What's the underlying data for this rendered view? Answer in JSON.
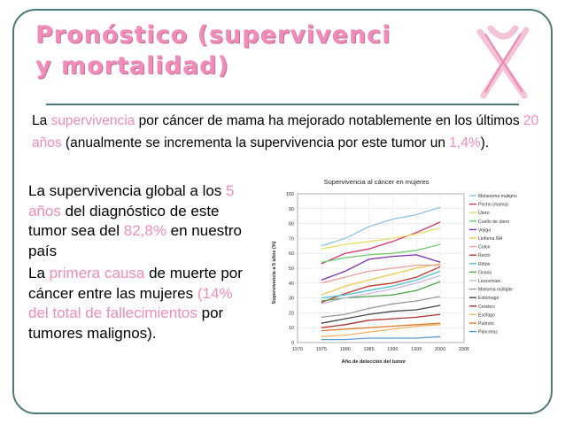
{
  "slide": {
    "title_line1": "Pronóstico (supervivenci",
    "title_line2": "y mortalidad)",
    "intro": {
      "t1": "La ",
      "h1": "supervivencia",
      "t2": " por cáncer de mama ha mejorado notablemente en los últimos ",
      "h2": "20 años",
      "t3": " (anualmente se incrementa la supervivencia por este tumor un ",
      "h3": "1,4%",
      "t4": ")."
    },
    "bullet1": {
      "t1": "La supervivencia global a los ",
      "h1": "5 años",
      "t2": " del diagnóstico de este tumor sea del ",
      "h2": "82,8%",
      "t3": " en nuestro país"
    },
    "bullet2": {
      "t1": "La ",
      "h1": "primera causa",
      "t2": " de muerte por cáncer entre las mujeres ",
      "h2": "(14% del total de fallecimientos",
      "t3": " por tumores malignos)."
    },
    "colors": {
      "title": "#f08cb9",
      "highlight": "#f08cb9",
      "frame": "#4d7a78"
    },
    "icon": "pink-ribbon-icon"
  },
  "chart_data": {
    "type": "line",
    "title": "Supervivencia al cáncer en mujeres",
    "xlabel": "Año de detección del tumor",
    "ylabel": "Supervivencia a 5 años (%)",
    "xlim": [
      1970,
      2005
    ],
    "ylim": [
      0,
      100
    ],
    "xticks": [
      1970,
      1975,
      1980,
      1985,
      1990,
      1995,
      2000,
      2005
    ],
    "yticks": [
      0,
      10,
      20,
      30,
      40,
      50,
      60,
      70,
      80,
      90,
      100
    ],
    "legend_position": "right",
    "x": [
      1975,
      1980,
      1985,
      1990,
      1995,
      2000
    ],
    "series": [
      {
        "name": "Melanoma maligno",
        "color": "#8fc3e6",
        "values": [
          65,
          70,
          78,
          83,
          86,
          91
        ]
      },
      {
        "name": "Pecho (mama)",
        "color": "#d6336c",
        "values": [
          53,
          60,
          63,
          68,
          74,
          81
        ]
      },
      {
        "name": "Útero",
        "color": "#e8de6a",
        "values": [
          63,
          66,
          68,
          70,
          73,
          77
        ]
      },
      {
        "name": "Cuello de útero",
        "color": "#6fcf6f",
        "values": [
          54,
          57,
          59,
          60,
          62,
          66
        ]
      },
      {
        "name": "Vejiga",
        "color": "#7b2fb0",
        "values": [
          42,
          48,
          56,
          58,
          59,
          54
        ]
      },
      {
        "name": "Linfoma NH",
        "color": "#f0c74a",
        "values": [
          32,
          38,
          42,
          46,
          50,
          53
        ]
      },
      {
        "name": "Colon",
        "color": "#e9a0a0",
        "values": [
          40,
          44,
          48,
          50,
          52,
          52
        ]
      },
      {
        "name": "Recto",
        "color": "#c0392b",
        "values": [
          27,
          33,
          38,
          40,
          44,
          51
        ]
      },
      {
        "name": "Riñón",
        "color": "#4fc3d9",
        "values": [
          30,
          32,
          35,
          38,
          42,
          48
        ]
      },
      {
        "name": "Ovario",
        "color": "#4fa84f",
        "values": [
          28,
          30,
          31,
          32,
          35,
          41
        ]
      },
      {
        "name": "Leucemias",
        "color": "#c8b8e0",
        "values": [
          26,
          30,
          33,
          36,
          40,
          45
        ]
      },
      {
        "name": "Mieloma múltiple",
        "color": "#9a9a9a",
        "values": [
          17,
          19,
          23,
          26,
          28,
          31
        ]
      },
      {
        "name": "Estómago",
        "color": "#444444",
        "values": [
          13,
          16,
          19,
          21,
          22,
          25
        ]
      },
      {
        "name": "Cerebro",
        "color": "#b03030",
        "values": [
          10,
          12,
          15,
          16,
          17,
          19
        ]
      },
      {
        "name": "Esófago",
        "color": "#f4b36a",
        "values": [
          4,
          5,
          7,
          9,
          11,
          12
        ]
      },
      {
        "name": "Pulmón",
        "color": "#e07a2a",
        "values": [
          8,
          9,
          10,
          11,
          12,
          13
        ]
      },
      {
        "name": "Páncreas",
        "color": "#5b9bd5",
        "values": [
          2,
          2,
          3,
          3,
          3,
          4
        ]
      }
    ]
  }
}
